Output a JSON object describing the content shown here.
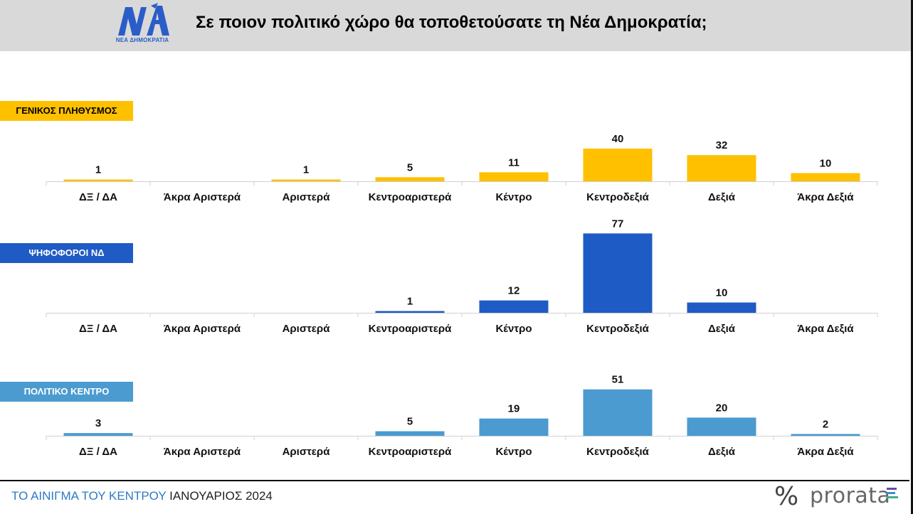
{
  "header": {
    "title": "Σε ποιον πολιτικό χώρο θα τοποθετούσατε τη Νέα Δημοκρατία;",
    "logo_mark": "ΝΔ",
    "logo_text": "ΝΕΑ ΔΗΜΟΚΡΑΤΙΑ"
  },
  "colors": {
    "header_bg": "#d9d9d9",
    "gold": "#ffc000",
    "blue_dark": "#1f5bc4",
    "blue_light": "#4b9bd0",
    "footer_blue": "#2e79c7"
  },
  "chart_data": [
    {
      "type": "bar",
      "label": "ΓΕΝΙΚΟΣ ΠΛΗΘΥΣΜΟΣ",
      "color": "#ffc000",
      "label_text_color": "#000000",
      "categories": [
        "ΔΞ / ΔΑ",
        "Άκρα Αριστερά",
        "Αριστερά",
        "Κεντροαριστερά",
        "Κέντρο",
        "Κεντροδεξιά",
        "Δεξιά",
        "Άκρα Δεξιά"
      ],
      "values": [
        1,
        null,
        1,
        5,
        11,
        40,
        32,
        10
      ],
      "ylim": [
        0,
        100
      ]
    },
    {
      "type": "bar",
      "label": "ΨΗΦΟΦΟΡΟΙ ΝΔ",
      "color": "#1f5bc4",
      "label_text_color": "#ffffff",
      "categories": [
        "ΔΞ / ΔΑ",
        "Άκρα Αριστερά",
        "Αριστερά",
        "Κεντροαριστερά",
        "Κέντρο",
        "Κεντροδεξιά",
        "Δεξιά",
        "Άκρα Δεξιά"
      ],
      "values": [
        null,
        null,
        null,
        1,
        12,
        77,
        10,
        null
      ],
      "ylim": [
        0,
        100
      ]
    },
    {
      "type": "bar",
      "label": "ΠΟΛΙΤΙΚΟ ΚΕΝΤΡΟ",
      "color": "#4b9bd0",
      "label_text_color": "#ffffff",
      "categories": [
        "ΔΞ / ΔΑ",
        "Άκρα Αριστερά",
        "Αριστερά",
        "Κεντροαριστερά",
        "Κέντρο",
        "Κεντροδεξιά",
        "Δεξιά",
        "Άκρα Δεξιά"
      ],
      "values": [
        3,
        null,
        null,
        5,
        19,
        51,
        20,
        2
      ],
      "ylim": [
        0,
        100
      ]
    }
  ],
  "footer": {
    "title_part1": "ΤΟ ΑΙΝΙΓΜΑ ΤΟΥ ΚΕΝΤΡΟΥ",
    "title_part2": "ΙΑΝΟΥΑΡΙΟΣ 2024",
    "brand_symbol": "%",
    "brand_name": "prorata"
  }
}
